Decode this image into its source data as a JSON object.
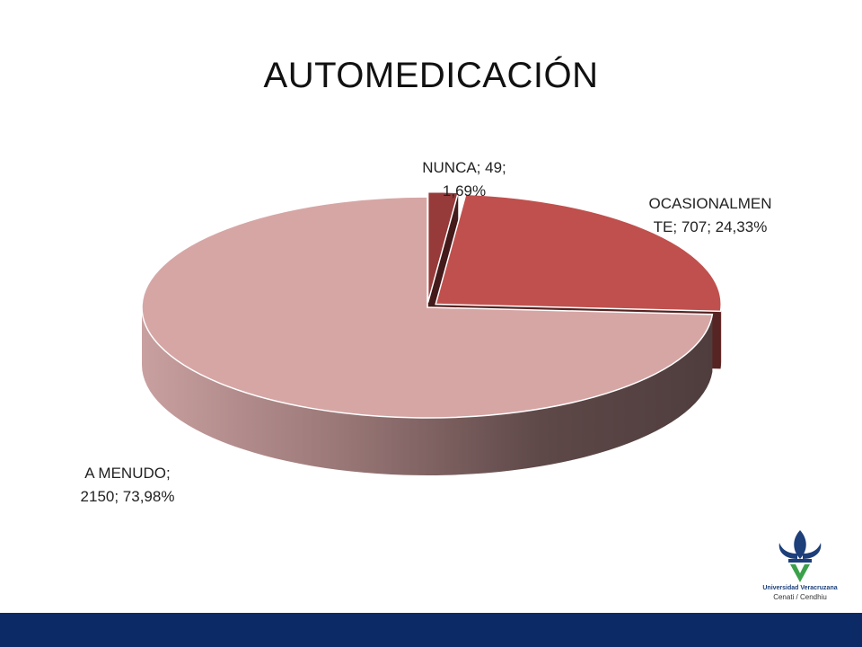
{
  "slide": {
    "title": "AUTOMEDICACIÓN",
    "logo": {
      "university": "Universidad Veracruzana",
      "department": "Cenati / Cendhiu"
    }
  },
  "chart_data": {
    "type": "pie",
    "title": "AUTOMEDICACIÓN",
    "three_d": true,
    "series": [
      {
        "slices": [
          {
            "key": "nunca",
            "name": "NUNCA",
            "value": 49,
            "percent": 1.69,
            "label": "NUNCA; 49; 1,69%",
            "color": "#963a3a",
            "exploded": true
          },
          {
            "key": "ocasional",
            "name": "OCASIONALMENTE",
            "value": 707,
            "percent": 24.33,
            "label": "OCASIONALMENTE; 707; 24,33%",
            "color": "#c0504d",
            "exploded": true
          },
          {
            "key": "amenudo",
            "name": "A MENUDO",
            "value": 2150,
            "percent": 73.98,
            "label": "A MENUDO; 2150; 73,98%",
            "color": "#d6a6a5",
            "exploded": false
          }
        ]
      }
    ],
    "labels": {
      "nunca": {
        "line1": "NUNCA; 49;",
        "line2": "1,69%"
      },
      "ocasional": {
        "line1": "OCASIONALMEN",
        "line2": "TE; 707; 24,33%"
      },
      "amenudo": {
        "line1": "A MENUDO;",
        "line2": "2150; 73,98%"
      }
    },
    "legend": "none"
  }
}
